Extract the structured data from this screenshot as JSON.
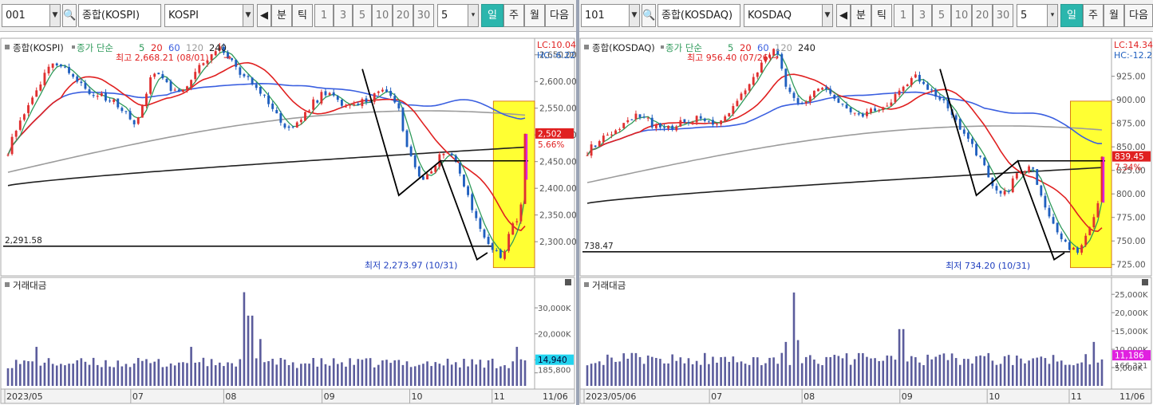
{
  "colors": {
    "candle_up": "#e03030",
    "candle_down": "#1f5fbf",
    "ma5": "#2e9a5a",
    "ma20": "#e02020",
    "ma60": "#3a5fe0",
    "ma120": "#9c9c9c",
    "ma240": "#202020",
    "current_line": "#e020e0",
    "highlight_box": "#ffff33",
    "volume_bar": "#5b5c9c",
    "volume_tag": "#22d3ee",
    "volume_tag_right": "#e020e0"
  },
  "shared_labels": {
    "period_day": "일",
    "period_week": "주",
    "period_month": "월",
    "next": "다음",
    "minute": "분",
    "tick": "틱",
    "minute_options": [
      "1",
      "3",
      "5",
      "10",
      "20",
      "30"
    ],
    "count_value": "5",
    "ma_label": "종가 단순",
    "ma_periods": [
      "5",
      "20",
      "60",
      "120",
      "240"
    ],
    "volume_title": "거래대금"
  },
  "left": {
    "code": "001",
    "market": "종합(KOSPI)",
    "name": "KOSPI",
    "chart_title": "종합(KOSPI)",
    "lc_label": "LC:10.04",
    "hc_label": "HC:-6.22",
    "current_price": "2,502",
    "current_change": "5.66%",
    "support_value": "2,291.58",
    "high_label": "최고 2,668.21 (08/01)",
    "low_label": "최저 2,273.97 (10/31)",
    "x_labels": [
      "2023/05",
      "07",
      "08",
      "09",
      "10",
      "11",
      "11/06"
    ],
    "volume_current": "14,940",
    "volume_ma": "185,800",
    "chart_data": {
      "type": "candlestick",
      "title": "종합(KOSPI)",
      "xlabel": "",
      "ylabel": "",
      "ylim": [
        2245,
        2675
      ],
      "yticks": [
        2300,
        2350,
        2400,
        2450,
        2500,
        2550,
        2600,
        2650
      ],
      "anchors": [
        2470,
        2530,
        2560,
        2610,
        2640,
        2625,
        2600,
        2580,
        2570,
        2560,
        2545,
        2520,
        2600,
        2620,
        2580,
        2590,
        2620,
        2640,
        2660,
        2640,
        2610,
        2590,
        2570,
        2530,
        2510,
        2530,
        2560,
        2580,
        2565,
        2550,
        2560,
        2570,
        2590,
        2565,
        2480,
        2420,
        2430,
        2470,
        2460,
        2390,
        2330,
        2290,
        2274,
        2330,
        2380
      ],
      "last_close": 2502,
      "ma120_start": 2430,
      "ma120_end": 2537,
      "ma240_start": 2405,
      "ma240_end": 2477,
      "ma60_end": 2535,
      "high_value": 2668.21,
      "low_value": 2273.97,
      "support": 2291.58,
      "volume_ylim": [
        0,
        38000
      ],
      "volume_yticks": [
        5000,
        10000,
        20000,
        30000
      ],
      "volume_ticklabels": [
        "",
        "",
        "20,000K",
        "30,000K"
      ],
      "volume_base": 9000,
      "volume_spikes": [
        {
          "at": 0.46,
          "value": 36000
        },
        {
          "at": 0.47,
          "value": 27000
        },
        {
          "at": 0.49,
          "value": 18000
        },
        {
          "at": 0.355,
          "value": 15000
        },
        {
          "at": 0.055,
          "value": 15000
        },
        {
          "at": 0.985,
          "value": 15000
        }
      ]
    }
  },
  "right": {
    "code": "101",
    "market": "종합(KOSDAQ)",
    "name": "KOSDAQ",
    "chart_title": "종합(KOSDAQ)",
    "lc_label": "LC:14.34",
    "hc_label": "HC:-12.2",
    "current_price": "839.45",
    "current_change": "7.34%",
    "support_value": "738.47",
    "high_label": "최고 956.40 (07/26)",
    "low_label": "최저 734.20 (10/31)",
    "x_labels": [
      "2023/05/06",
      "07",
      "08",
      "09",
      "10",
      "11",
      "11/06"
    ],
    "volume_current": "11,186",
    "volume_ma": "166,321",
    "chart_data": {
      "type": "candlestick",
      "title": "종합(KOSDAQ)",
      "xlabel": "",
      "ylabel": "",
      "ylim": [
        718,
        962
      ],
      "yticks": [
        725,
        750,
        775,
        800,
        825,
        850,
        875,
        900,
        925
      ],
      "anchors": [
        845,
        855,
        862,
        870,
        882,
        878,
        872,
        868,
        875,
        880,
        878,
        875,
        885,
        900,
        915,
        940,
        956,
        915,
        895,
        905,
        910,
        905,
        895,
        880,
        885,
        890,
        900,
        915,
        925,
        915,
        905,
        890,
        870,
        850,
        830,
        800,
        805,
        825,
        830,
        790,
        760,
        745,
        734,
        770,
        800
      ],
      "last_close": 839.45,
      "ma120_start": 812,
      "ma120_end": 868,
      "ma240_start": 790,
      "ma240_end": 828,
      "ma60_end": 855,
      "high_value": 956.4,
      "low_value": 734.2,
      "support": 738.47,
      "volume_ylim": [
        0,
        27000
      ],
      "volume_yticks": [
        5000,
        10000,
        15000,
        20000,
        25000
      ],
      "volume_ticklabels": [
        "5,000K",
        "10,000K",
        "15,000K",
        "20,000K",
        "25,000K"
      ],
      "volume_base": 7500,
      "volume_spikes": [
        {
          "at": 0.4,
          "value": 25500
        },
        {
          "at": 0.41,
          "value": 12500
        },
        {
          "at": 0.385,
          "value": 12000
        },
        {
          "at": 0.61,
          "value": 15500
        },
        {
          "at": 0.985,
          "value": 12000
        }
      ]
    }
  }
}
